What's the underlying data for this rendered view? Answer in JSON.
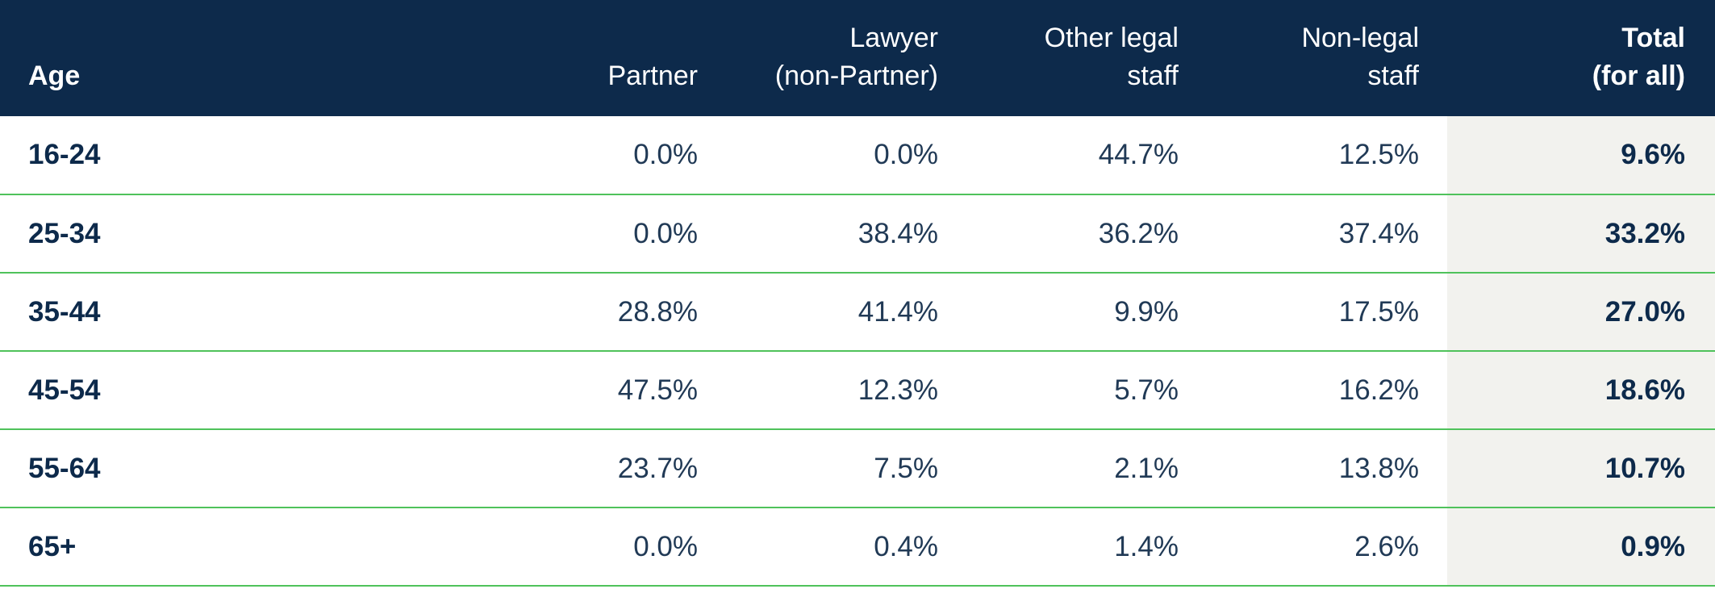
{
  "table": {
    "headers": {
      "age": "Age",
      "partner": "Partner",
      "lawyer_line1": "Lawyer",
      "lawyer_line2": "(non-Partner)",
      "other_line1": "Other legal",
      "other_line2": "staff",
      "nonlegal_line1": "Non-legal",
      "nonlegal_line2": "staff",
      "total_line1": "Total",
      "total_line2": "(for all)"
    },
    "rows": [
      {
        "age": "16-24",
        "partner": "0.0%",
        "lawyer": "0.0%",
        "other": "44.7%",
        "nonlegal": "12.5%",
        "total": "9.6%"
      },
      {
        "age": "25-34",
        "partner": "0.0%",
        "lawyer": "38.4%",
        "other": "36.2%",
        "nonlegal": "37.4%",
        "total": "33.2%"
      },
      {
        "age": "35-44",
        "partner": "28.8%",
        "lawyer": "41.4%",
        "other": "9.9%",
        "nonlegal": "17.5%",
        "total": "27.0%"
      },
      {
        "age": "45-54",
        "partner": "47.5%",
        "lawyer": "12.3%",
        "other": "5.7%",
        "nonlegal": "16.2%",
        "total": "18.6%"
      },
      {
        "age": "55-64",
        "partner": "23.7%",
        "lawyer": "7.5%",
        "other": "2.1%",
        "nonlegal": "13.8%",
        "total": "10.7%"
      },
      {
        "age": "65+",
        "partner": "0.0%",
        "lawyer": "0.4%",
        "other": "1.4%",
        "nonlegal": "2.6%",
        "total": "0.9%"
      }
    ]
  },
  "colors": {
    "header_background": "#0d2a4b",
    "row_divider": "#4fc25b",
    "total_column_background": "#f2f2ee",
    "text_dark": "#0d2a4b"
  }
}
